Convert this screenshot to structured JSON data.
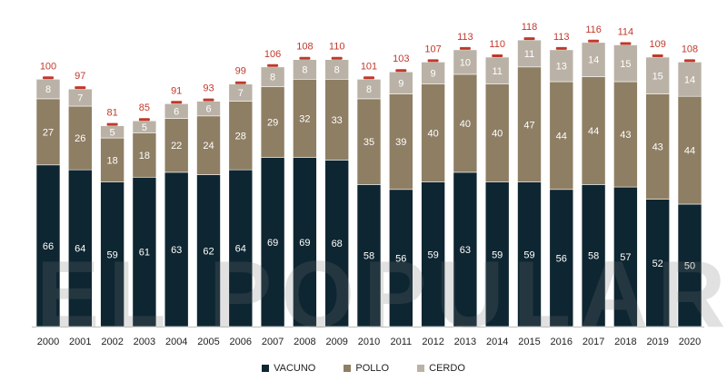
{
  "chart_data": {
    "type": "bar",
    "stacked": true,
    "categories": [
      "2000",
      "2001",
      "2002",
      "2003",
      "2004",
      "2005",
      "2006",
      "2007",
      "2008",
      "2009",
      "2010",
      "2011",
      "2012",
      "2013",
      "2014",
      "2015",
      "2016",
      "2017",
      "2018",
      "2019",
      "2020"
    ],
    "series": [
      {
        "name": "VACUNO",
        "color": "#0e2631",
        "values": [
          66,
          64,
          59,
          61,
          63,
          62,
          64,
          69,
          69,
          68,
          58,
          56,
          59,
          63,
          59,
          59,
          56,
          58,
          57,
          52,
          50
        ]
      },
      {
        "name": "POLLO",
        "color": "#8e7e63",
        "values": [
          27,
          26,
          18,
          18,
          22,
          24,
          28,
          29,
          32,
          33,
          35,
          39,
          40,
          40,
          40,
          47,
          44,
          44,
          43,
          43,
          44
        ]
      },
      {
        "name": "CERDO",
        "color": "#bab2a6",
        "values": [
          8,
          7,
          5,
          5,
          6,
          6,
          7,
          8,
          8,
          8,
          8,
          9,
          9,
          10,
          11,
          11,
          13,
          14,
          15,
          15,
          14
        ]
      }
    ],
    "totals": [
      100,
      97,
      81,
      85,
      91,
      93,
      99,
      106,
      108,
      110,
      101,
      103,
      107,
      113,
      110,
      118,
      113,
      116,
      114,
      109,
      108
    ],
    "total_label_color": "#c0392b",
    "ylim": [
      0,
      120
    ],
    "grid": false,
    "legend": "bottom-center"
  },
  "watermark": "EL POPULAR"
}
